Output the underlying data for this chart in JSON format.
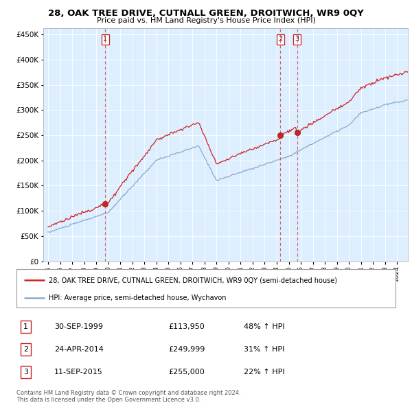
{
  "title": "28, OAK TREE DRIVE, CUTNALL GREEN, DROITWICH, WR9 0QY",
  "subtitle": "Price paid vs. HM Land Registry's House Price Index (HPI)",
  "legend_line1": "28, OAK TREE DRIVE, CUTNALL GREEN, DROITWICH, WR9 0QY (semi-detached house)",
  "legend_line2": "HPI: Average price, semi-detached house, Wychavon",
  "footer1": "Contains HM Land Registry data © Crown copyright and database right 2024.",
  "footer2": "This data is licensed under the Open Government Licence v3.0.",
  "transactions": [
    {
      "num": "1",
      "date": "30-SEP-1999",
      "price": "£113,950",
      "pct": "48% ↑ HPI",
      "x_year": 1999.75,
      "y_val": 113950
    },
    {
      "num": "2",
      "date": "24-APR-2014",
      "price": "£249,999",
      "pct": "31% ↑ HPI",
      "x_year": 2014.31,
      "y_val": 249999
    },
    {
      "num": "3",
      "date": "11-SEP-2015",
      "price": "£255,000",
      "pct": "22% ↑ HPI",
      "x_year": 2015.69,
      "y_val": 255000
    }
  ],
  "red_line_color": "#cc2222",
  "blue_line_color": "#88aacc",
  "dashed_vline_color": "#dd4444",
  "background_color": "#ffffff",
  "chart_bg_color": "#ddeeff",
  "grid_color": "#ffffff",
  "ylim": [
    0,
    462000
  ],
  "xlim_start": 1994.6,
  "xlim_end": 2024.9,
  "yticks": [
    0,
    50000,
    100000,
    150000,
    200000,
    250000,
    300000,
    350000,
    400000,
    450000
  ],
  "xticks": [
    1995,
    1996,
    1997,
    1998,
    1999,
    2000,
    2001,
    2002,
    2003,
    2004,
    2005,
    2006,
    2007,
    2008,
    2009,
    2010,
    2011,
    2012,
    2013,
    2014,
    2015,
    2016,
    2017,
    2018,
    2019,
    2020,
    2021,
    2022,
    2023,
    2024
  ]
}
